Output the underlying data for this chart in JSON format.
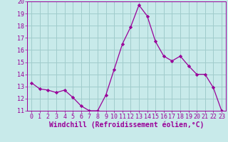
{
  "x": [
    0,
    1,
    2,
    3,
    4,
    5,
    6,
    7,
    8,
    9,
    10,
    11,
    12,
    13,
    14,
    15,
    16,
    17,
    18,
    19,
    20,
    21,
    22,
    23
  ],
  "y": [
    13.3,
    12.8,
    12.7,
    12.5,
    12.7,
    12.1,
    11.4,
    11.0,
    11.0,
    12.3,
    14.4,
    16.5,
    17.9,
    19.7,
    18.8,
    16.7,
    15.5,
    15.1,
    15.5,
    14.7,
    14.0,
    14.0,
    12.9,
    11.0
  ],
  "line_color": "#990099",
  "marker_color": "#990099",
  "bg_color": "#c8eaea",
  "grid_color": "#a0cccc",
  "xlabel": "Windchill (Refroidissement éolien,°C)",
  "ylabel": "",
  "ylim": [
    11,
    20
  ],
  "xlim": [
    -0.5,
    23.5
  ],
  "yticks": [
    11,
    12,
    13,
    14,
    15,
    16,
    17,
    18,
    19,
    20
  ],
  "xticks": [
    0,
    1,
    2,
    3,
    4,
    5,
    6,
    7,
    8,
    9,
    10,
    11,
    12,
    13,
    14,
    15,
    16,
    17,
    18,
    19,
    20,
    21,
    22,
    23
  ],
  "font_color": "#990099",
  "tick_fontsize": 6,
  "xlabel_fontsize": 7
}
